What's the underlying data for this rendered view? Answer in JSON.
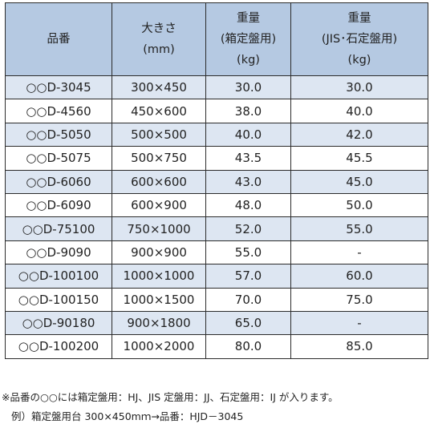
{
  "table": {
    "headers": [
      [
        "品番"
      ],
      [
        "大きさ",
        "(mm)"
      ],
      [
        "重量",
        "(箱定盤用)",
        "(kg)"
      ],
      [
        "重量",
        "(JIS･石定盤用)",
        "(kg)"
      ]
    ],
    "rows": [
      [
        "○○D-3045",
        "300×450",
        "30.0",
        "30.0"
      ],
      [
        "○○D-4560",
        "450×600",
        "38.0",
        "40.0"
      ],
      [
        "○○D-5050",
        "500×500",
        "40.0",
        "42.0"
      ],
      [
        "○○D-5075",
        "500×750",
        "43.5",
        "45.5"
      ],
      [
        "○○D-6060",
        "600×600",
        "43.0",
        "45.0"
      ],
      [
        "○○D-6090",
        "600×900",
        "48.0",
        "50.0"
      ],
      [
        "○○D-75100",
        "750×1000",
        "52.0",
        "55.0"
      ],
      [
        "○○D-9090",
        "900×900",
        "55.0",
        "-"
      ],
      [
        "○○D-100100",
        "1000×1000",
        "57.0",
        "60.0"
      ],
      [
        "○○D-100150",
        "1000×1500",
        "70.0",
        "75.0"
      ],
      [
        "○○D-90180",
        "900×1800",
        "65.0",
        "-"
      ],
      [
        "○○D-100200",
        "1000×2000",
        "80.0",
        "85.0"
      ]
    ]
  },
  "notes": {
    "line1": "※品番の○○には箱定盤用：HJ、JIS 定盤用：JJ、石定盤用：IJ が入ります。",
    "line2": "例）箱定盤用台 300×450mｍ→品番：HJD－3045"
  },
  "colors": {
    "header_bg": "#b5c9e2",
    "stripe_bg": "#dde6f2",
    "border": "#2b2b2b"
  }
}
